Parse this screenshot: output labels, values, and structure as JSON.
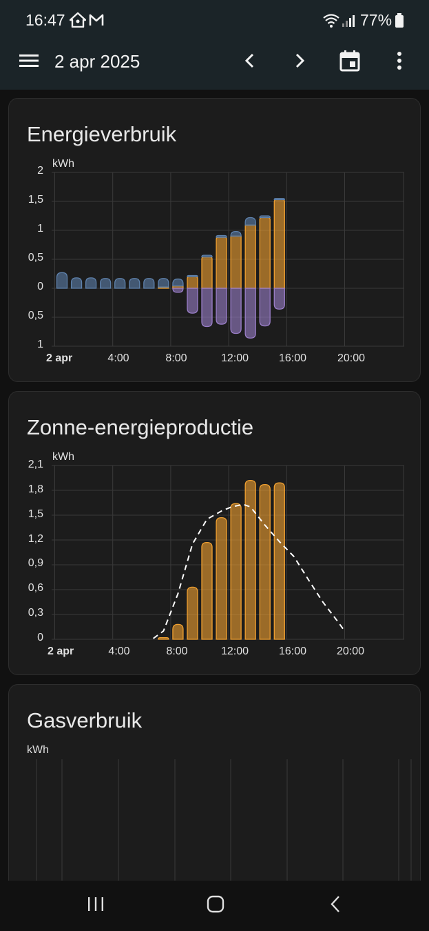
{
  "status_bar": {
    "time": "16:47",
    "battery": "77%",
    "icons": [
      "home-assistant-icon",
      "gmail-icon",
      "wifi-icon",
      "signal-icon",
      "battery-icon"
    ]
  },
  "app_bar": {
    "title": "2 apr 2025",
    "icons": [
      "menu-icon",
      "chevron-left-icon",
      "chevron-right-icon",
      "calendar-icon",
      "more-vert-icon"
    ]
  },
  "colors": {
    "grid_consumption": "#5e81ab",
    "solar": "#f0a030",
    "return_to_grid": "#9a7ec8",
    "forecast_line": "#ffffff"
  },
  "cards": {
    "energy": {
      "title": "Energieverbruik",
      "unit": "kWh",
      "y_labels": [
        "2",
        "1,5",
        "1",
        "0,5",
        "0",
        "0,5",
        "1"
      ],
      "x_labels": [
        "2 apr",
        "4:00",
        "8:00",
        "12:00",
        "16:00",
        "20:00"
      ]
    },
    "solar": {
      "title": "Zonne-energieproductie",
      "unit": "kWh",
      "y_labels": [
        "2,1",
        "1,8",
        "1,5",
        "1,2",
        "0,9",
        "0,6",
        "0,3",
        "0"
      ],
      "x_labels": [
        "2 apr",
        "4:00",
        "8:00",
        "12:00",
        "16:00",
        "20:00"
      ]
    },
    "gas": {
      "title": "Gasverbruik",
      "unit": "kWh"
    }
  },
  "chart_data": [
    {
      "type": "bar",
      "ylim": [
        -1,
        2
      ],
      "ylabel": "kWh",
      "hours": [
        0,
        1,
        2,
        3,
        4,
        5,
        6,
        7,
        8,
        9,
        10,
        11,
        12,
        13,
        14,
        15
      ],
      "series": [
        {
          "values": [
            0.27,
            0.18,
            0.18,
            0.17,
            0.17,
            0.17,
            0.17,
            0.15,
            0.12,
            0.02,
            0.03,
            0.03,
            0.08,
            0.13,
            0.03,
            0.02
          ]
        },
        {
          "values": [
            0,
            0,
            0,
            0,
            0,
            0,
            0,
            0.02,
            0.04,
            0.2,
            0.54,
            0.88,
            0.9,
            1.09,
            1.22,
            1.53
          ]
        },
        {
          "values": [
            0,
            0,
            0,
            0,
            0,
            0,
            0,
            0,
            -0.07,
            -0.43,
            -0.66,
            -0.62,
            -0.78,
            -0.86,
            -0.65,
            -0.36
          ]
        }
      ]
    },
    {
      "type": "bar",
      "ylim": [
        0,
        2.1
      ],
      "ylabel": "kWh",
      "hours": [
        7,
        8,
        9,
        10,
        11,
        12,
        13,
        14,
        15
      ],
      "series": [
        {
          "values": [
            0.02,
            0.18,
            0.63,
            1.17,
            1.47,
            1.64,
            1.92,
            1.87,
            1.89
          ]
        }
      ],
      "forecast": {
        "x": [
          6.8,
          7.5,
          8.5,
          9.5,
          10.5,
          11.5,
          12.2,
          13,
          13.5,
          14.5,
          15.5,
          16.5,
          17.5,
          18.5,
          19.5,
          20
        ],
        "y": [
          0.01,
          0.1,
          0.55,
          1.15,
          1.45,
          1.55,
          1.6,
          1.63,
          1.6,
          1.38,
          1.18,
          1.0,
          0.72,
          0.45,
          0.22,
          0.1
        ]
      }
    }
  ]
}
